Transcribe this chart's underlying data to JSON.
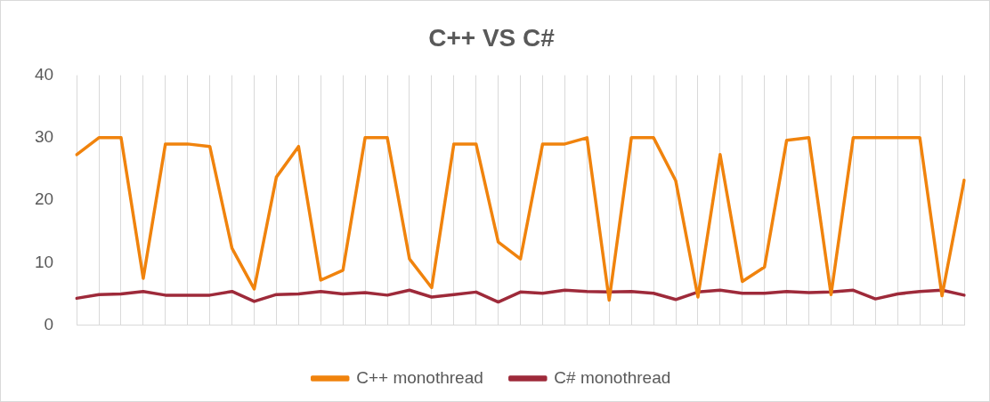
{
  "chart_data": {
    "type": "line",
    "title": "C++ VS C#",
    "categories": [
      null,
      null,
      null,
      null,
      null,
      null,
      null,
      null,
      null,
      null,
      null,
      null,
      null,
      null,
      null,
      null,
      null,
      null,
      null,
      null,
      null,
      null,
      null,
      null,
      null,
      null,
      null,
      null,
      null,
      null,
      null,
      null,
      null,
      null,
      null,
      null,
      null,
      null,
      null,
      null,
      null
    ],
    "series": [
      {
        "name": "C++ monothread",
        "color": "#f0830d",
        "values": [
          27.3,
          30,
          30,
          7.5,
          29,
          29,
          28.6,
          12.3,
          5.8,
          23.7,
          28.6,
          7.2,
          8.8,
          30,
          30,
          10.6,
          6,
          29,
          29,
          13.3,
          10.6,
          29,
          29,
          30,
          4,
          30,
          30,
          23.1,
          4.5,
          27.3,
          7,
          9.3,
          29.6,
          30,
          4.9,
          30,
          30,
          30,
          30,
          4.7,
          23.2
        ]
      },
      {
        "name": "C# monothread",
        "color": "#9e2a3a",
        "values": [
          4.3,
          4.9,
          5,
          5.4,
          4.8,
          4.8,
          4.8,
          5.4,
          3.8,
          4.9,
          5,
          5.4,
          5,
          5.2,
          4.8,
          5.6,
          4.5,
          4.9,
          5.3,
          3.7,
          5.3,
          5.1,
          5.6,
          5.4,
          5.3,
          5.4,
          5.1,
          4.1,
          5.3,
          5.6,
          5.1,
          5.1,
          5.4,
          5.2,
          5.3,
          5.6,
          4.2,
          5,
          5.4,
          5.6,
          4.8
        ]
      }
    ],
    "ylim": [
      0,
      40
    ],
    "yticks": [
      0,
      10,
      20,
      30,
      40
    ],
    "grid": "x",
    "legend": "bottom",
    "marker": "none",
    "line_style": "solid"
  }
}
